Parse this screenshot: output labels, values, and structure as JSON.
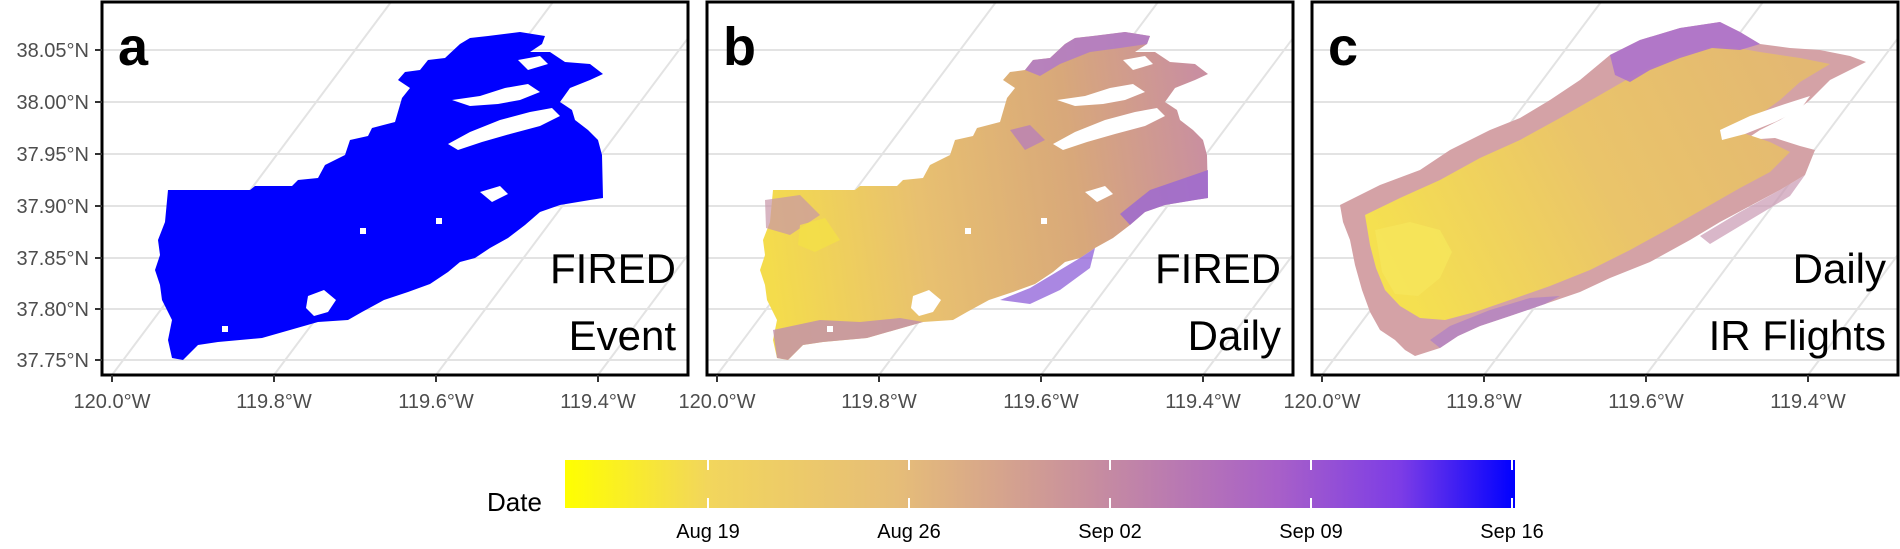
{
  "colors": {
    "date_scale": [
      "#ffff00",
      "#f2d65c",
      "#e6bd78",
      "#c88f9e",
      "#a860c8",
      "#7c3ce6",
      "#0000ff"
    ],
    "event_fill": "#0000ff",
    "grid": "#e3e3e3",
    "frame": "#000000"
  },
  "axes": {
    "y_ticks": [
      "38.05°N",
      "38.00°N",
      "37.95°N",
      "37.90°N",
      "37.85°N",
      "37.80°N",
      "37.75°N"
    ],
    "x_ticks": [
      "120.0°W",
      "119.8°W",
      "119.6°W",
      "119.4°W"
    ]
  },
  "panels": [
    {
      "letter": "a",
      "title_line1": "FIRED",
      "title_line2": "Event"
    },
    {
      "letter": "b",
      "title_line1": "FIRED",
      "title_line2": "Daily"
    },
    {
      "letter": "c",
      "title_line1": "Daily",
      "title_line2": "IR Flights"
    }
  ],
  "legend": {
    "title": "Date",
    "ticks": [
      "Aug 19",
      "Aug 26",
      "Sep 02",
      "Sep 09",
      "Sep 16"
    ]
  }
}
